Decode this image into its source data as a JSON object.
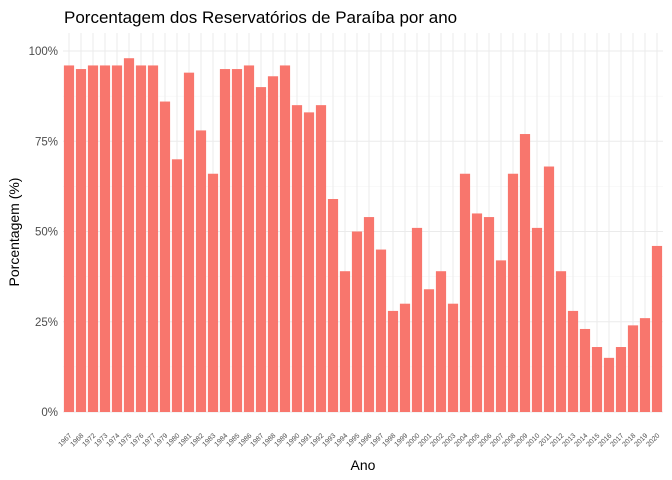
{
  "chart_data": {
    "type": "bar",
    "title": "Porcentagem dos Reservatórios de Paraíba por ano",
    "xlabel": "Ano",
    "ylabel": "Porcentagem (%)",
    "ylim": [
      0,
      1.05
    ],
    "y_ticks": [
      0,
      0.25,
      0.5,
      0.75,
      1.0
    ],
    "y_tick_labels": [
      "0%",
      "25%",
      "50%",
      "75%",
      "100%"
    ],
    "grid": true,
    "legend": "none",
    "bar_color": "#F8766D",
    "categories": [
      "1967",
      "1968",
      "1972",
      "1973",
      "1974",
      "1975",
      "1976",
      "1977",
      "1979",
      "1980",
      "1981",
      "1982",
      "1983",
      "1984",
      "1985",
      "1986",
      "1987",
      "1988",
      "1989",
      "1990",
      "1991",
      "1992",
      "1993",
      "1994",
      "1995",
      "1996",
      "1997",
      "1998",
      "1999",
      "2000",
      "2001",
      "2002",
      "2003",
      "2004",
      "2005",
      "2006",
      "2007",
      "2008",
      "2009",
      "2010",
      "2011",
      "2012",
      "2013",
      "2014",
      "2015",
      "2016",
      "2017",
      "2018",
      "2019",
      "2020"
    ],
    "values": [
      0.96,
      0.95,
      0.96,
      0.96,
      0.96,
      0.98,
      0.96,
      0.96,
      0.86,
      0.7,
      0.94,
      0.78,
      0.66,
      0.95,
      0.95,
      0.96,
      0.9,
      0.93,
      0.96,
      0.85,
      0.83,
      0.85,
      0.59,
      0.39,
      0.5,
      0.54,
      0.45,
      0.28,
      0.3,
      0.51,
      0.34,
      0.39,
      0.3,
      0.66,
      0.55,
      0.54,
      0.42,
      0.66,
      0.77,
      0.51,
      0.68,
      0.39,
      0.28,
      0.23,
      0.18,
      0.15,
      0.18,
      0.24,
      0.26,
      0.46
    ]
  }
}
